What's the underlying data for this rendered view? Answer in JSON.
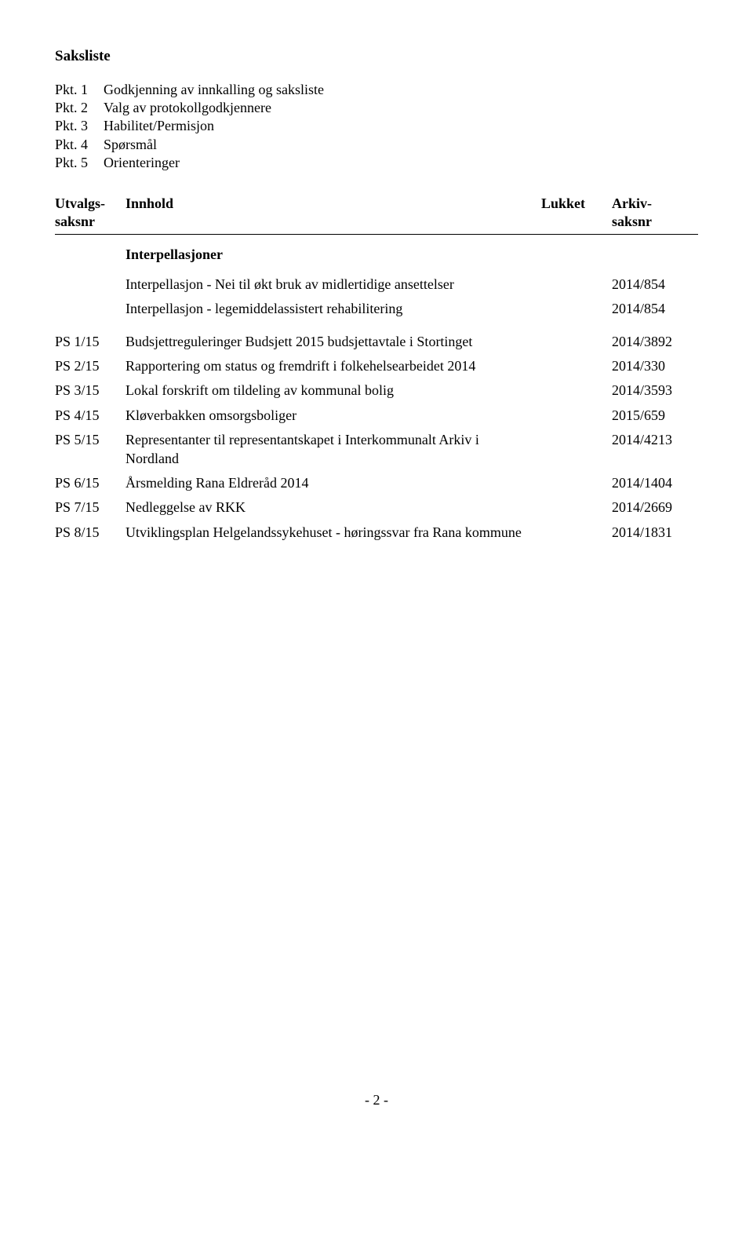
{
  "title": "Saksliste",
  "pkt": [
    {
      "label": "Pkt. 1",
      "text": "Godkjenning av innkalling og saksliste"
    },
    {
      "label": "Pkt. 2",
      "text": "Valg av protokollgodkjennere"
    },
    {
      "label": "Pkt. 3",
      "text": "Habilitet/Permisjon"
    },
    {
      "label": "Pkt. 4",
      "text": "Spørsmål"
    },
    {
      "label": "Pkt. 5",
      "text": "Orienteringer"
    }
  ],
  "headers": {
    "utvalg_l1": "Utvalgs-",
    "utvalg_l2": "saksnr",
    "innhold": "Innhold",
    "lukket": "Lukket",
    "arkiv_l1": "Arkiv-",
    "arkiv_l2": "saksnr"
  },
  "interp_heading": "Interpellasjoner",
  "interp": [
    {
      "text": "Interpellasjon - Nei til økt bruk av midlertidige ansettelser",
      "arkiv": "2014/854"
    },
    {
      "text": "Interpellasjon - legemiddelassistert rehabilitering",
      "arkiv": "2014/854"
    }
  ],
  "items": [
    {
      "ps": "PS 1/15",
      "text": "Budsjettreguleringer Budsjett 2015 budsjettavtale i Stortinget",
      "arkiv": "2014/3892"
    },
    {
      "ps": "PS 2/15",
      "text": "Rapportering om status og fremdrift i folkehelsearbeidet 2014",
      "arkiv": "2014/330"
    },
    {
      "ps": "PS 3/15",
      "text": "Lokal forskrift om tildeling av kommunal bolig",
      "arkiv": "2014/3593"
    },
    {
      "ps": "PS 4/15",
      "text": "Kløverbakken omsorgsboliger",
      "arkiv": "2015/659"
    },
    {
      "ps": "PS 5/15",
      "text": "Representanter til representantskapet i Interkommunalt Arkiv i Nordland",
      "arkiv": "2014/4213"
    },
    {
      "ps": "PS 6/15",
      "text": "Årsmelding Rana Eldreråd 2014",
      "arkiv": "2014/1404"
    },
    {
      "ps": "PS 7/15",
      "text": "Nedleggelse av RKK",
      "arkiv": "2014/2669"
    },
    {
      "ps": "PS 8/15",
      "text": "Utviklingsplan Helgelandssykehuset - høringssvar fra Rana kommune",
      "arkiv": "2014/1831"
    }
  ],
  "page_num": "- 2 -"
}
